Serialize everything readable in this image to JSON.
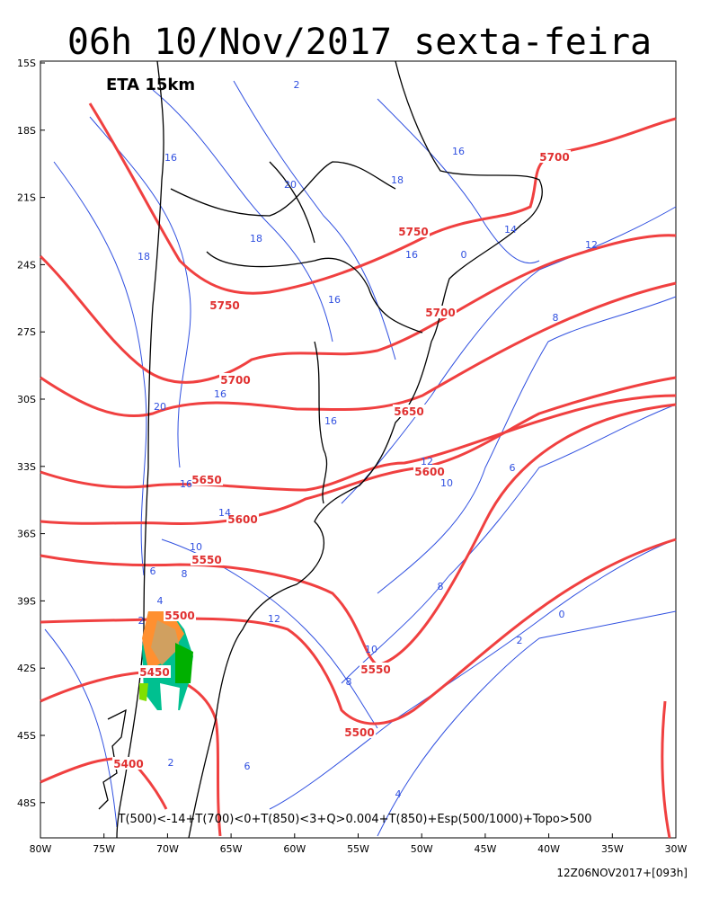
{
  "header": {
    "title": "06h 10/Nov/2017 sexta-feira",
    "model": "ETA 15km"
  },
  "map": {
    "lat_labels": [
      "15S",
      "18S",
      "21S",
      "24S",
      "27S",
      "30S",
      "33S",
      "36S",
      "39S",
      "42S",
      "45S",
      "48S"
    ],
    "lon_labels": [
      "80W",
      "75W",
      "70W",
      "65W",
      "60W",
      "55W",
      "50W",
      "45W",
      "40W",
      "35W",
      "30W"
    ],
    "height_labels": [
      5700,
      5750,
      5750,
      5700,
      5700,
      5650,
      5600,
      5650,
      5600,
      5550,
      5500,
      5550,
      5450,
      5500,
      5400
    ],
    "thickness_labels": [
      16,
      20,
      18,
      16,
      18,
      18,
      16,
      16,
      12,
      8,
      16,
      20,
      16,
      12,
      10,
      6,
      16,
      14,
      10,
      8,
      6,
      4,
      2,
      12,
      8,
      10,
      8,
      2,
      0,
      2,
      6,
      4,
      0,
      14,
      2
    ],
    "legend": "T(500)<-14+T(700)<0+T(850)<3+Q>0.004+T(850)+Esp(500/1000)+Topo>500"
  },
  "footer": {
    "run": "12Z06NOV2017+[093h]"
  }
}
